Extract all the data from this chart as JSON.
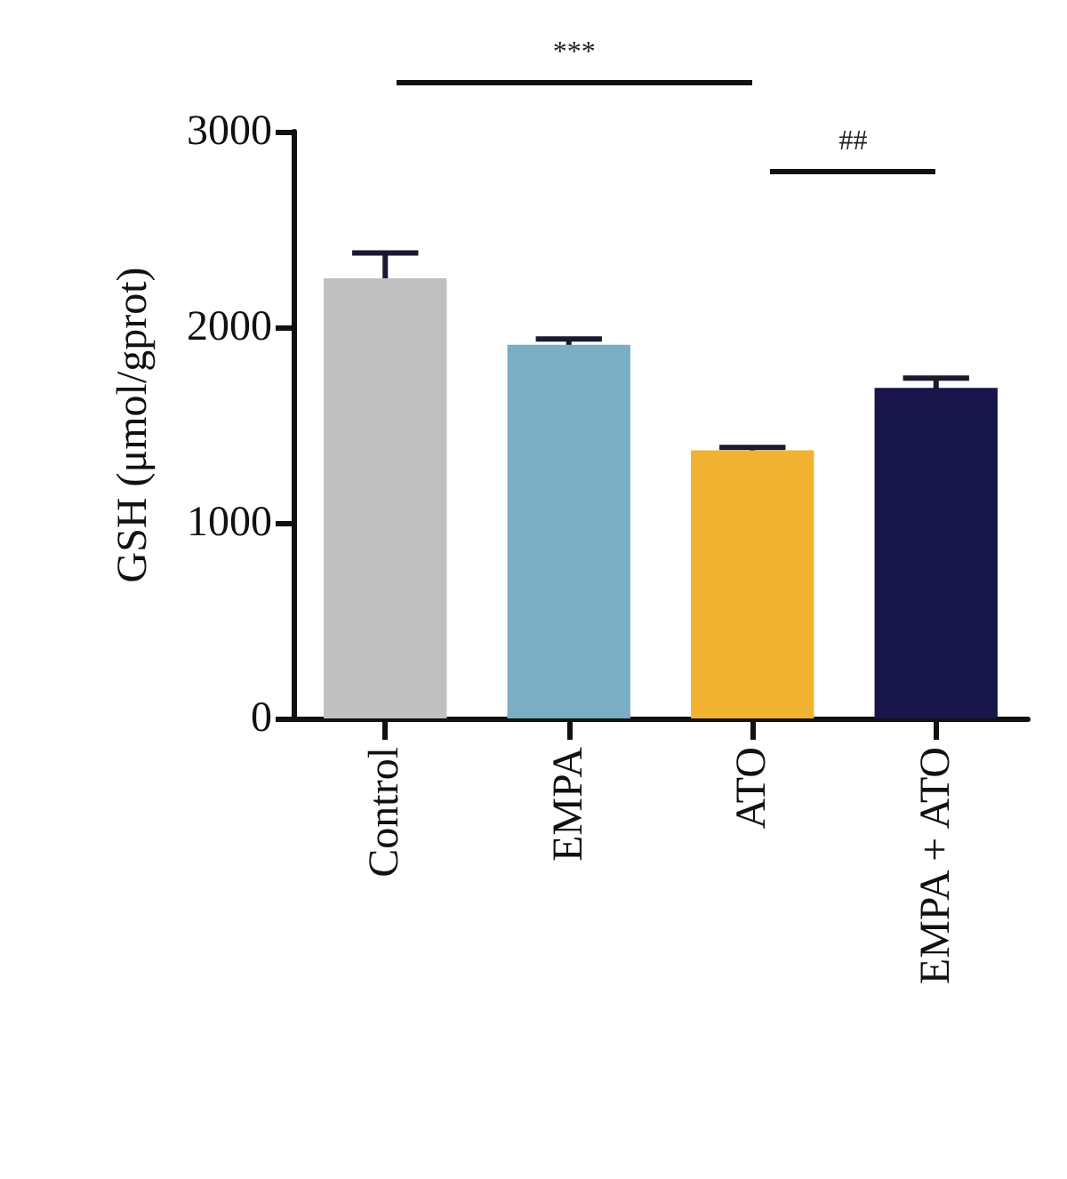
{
  "chart_data": {
    "type": "bar",
    "ylabel": "GSH (μmol/gprot)",
    "categories": [
      "Control",
      "EMPA",
      "ATO",
      "EMPA + ATO"
    ],
    "values": [
      2250,
      1910,
      1370,
      1690
    ],
    "errors": [
      130,
      30,
      15,
      50
    ],
    "colors": [
      "#c0c0c0",
      "#7aaec4",
      "#f2b231",
      "#18154b"
    ],
    "ylim": [
      0,
      3000
    ],
    "yticks": [
      0,
      1000,
      2000,
      3000
    ],
    "annotations": [
      "***",
      "##"
    ]
  }
}
